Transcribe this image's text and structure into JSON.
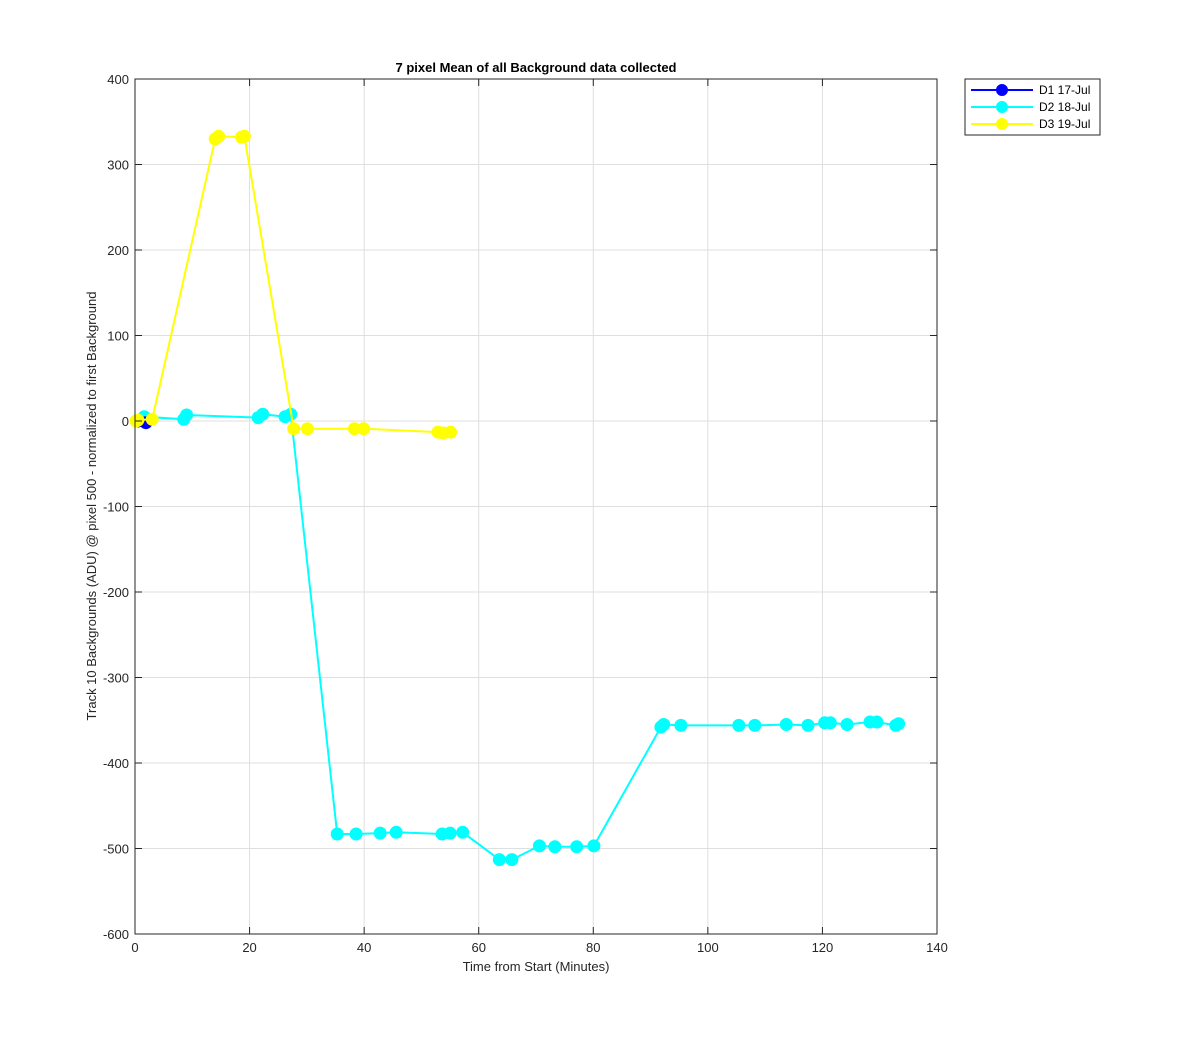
{
  "chart_data": {
    "type": "line",
    "title": "7 pixel Mean of all Background data collected",
    "xlabel": "Time from Start (Minutes)",
    "ylabel": "Track 10 Backgrounds (ADU) @ pixel 500 - normalized to first Background",
    "xlim": [
      0,
      140
    ],
    "ylim": [
      -600,
      400
    ],
    "xticks": [
      0,
      20,
      40,
      60,
      80,
      100,
      120,
      140
    ],
    "yticks": [
      -600,
      -500,
      -400,
      -300,
      -200,
      -100,
      0,
      100,
      200,
      300,
      400
    ],
    "xtick_labels": [
      "0",
      "20",
      "40",
      "60",
      "80",
      "100",
      "120",
      "140"
    ],
    "ytick_labels": [
      "-600",
      "-500",
      "-400",
      "-300",
      "-200",
      "-100",
      "0",
      "100",
      "200",
      "300",
      "400"
    ],
    "grid": true,
    "legend_position": "outside-top-right",
    "series": [
      {
        "name": "D1 17-Jul",
        "color": "#0000ff",
        "x": [
          0.5,
          1.9
        ],
        "y": [
          0,
          -2
        ]
      },
      {
        "name": "D2 18-Jul",
        "color": "#00ffff",
        "x": [
          0.3,
          1.6,
          8.5,
          9.0,
          21.5,
          22.3,
          26.2,
          27.2,
          35.3,
          38.6,
          42.8,
          45.6,
          53.6,
          55.0,
          57.2,
          63.6,
          65.8,
          70.6,
          73.3,
          77.1,
          80.1,
          91.8,
          92.3,
          95.3,
          105.4,
          108.2,
          113.7,
          117.5,
          120.4,
          121.4,
          124.3,
          128.3,
          129.5,
          132.8,
          133.3
        ],
        "y": [
          0,
          5,
          2,
          7,
          4,
          8,
          5,
          8,
          -483,
          -483,
          -482,
          -481,
          -483,
          -482,
          -481,
          -513,
          -513,
          -497,
          -498,
          -498,
          -497,
          -358,
          -355,
          -356,
          -356,
          -356,
          -355,
          -356,
          -353,
          -353,
          -355,
          -352,
          -352,
          -356,
          -354
        ]
      },
      {
        "name": "D3 19-Jul",
        "color": "#ffff00",
        "x": [
          0.2,
          0.5,
          3.0,
          14.0,
          14.6,
          18.6,
          19.1,
          27.7,
          30.1,
          38.3,
          39.9,
          52.9,
          53.8,
          55.1
        ],
        "y": [
          0,
          1,
          2,
          330,
          333,
          332,
          333,
          -9,
          -9,
          -9,
          -9,
          -13,
          -14,
          -13
        ]
      }
    ]
  }
}
